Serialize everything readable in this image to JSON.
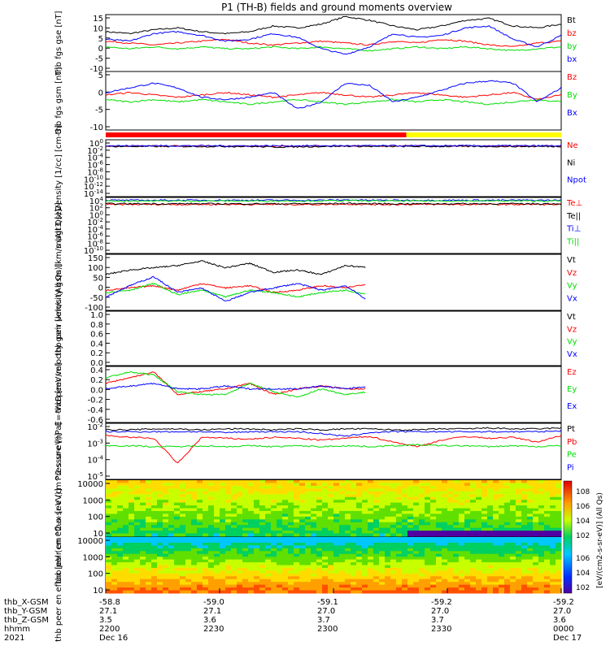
{
  "title": "P1 (TH-B) fields and ground moments overview",
  "colors": {
    "black": "#000000",
    "red": "#ff0000",
    "green": "#00dd00",
    "blue": "#0000ff",
    "yellow": "#ffff00"
  },
  "status_bar": {
    "segments": [
      {
        "from": 0,
        "to": 0.66,
        "color": "#ff0000"
      },
      {
        "from": 0.66,
        "to": 1,
        "color": "#ffff00"
      }
    ]
  },
  "colorbar": {
    "top_label": "[eV/(cm2-s-sr-eV)] (All Qs)",
    "ticks_top": [
      "10^8",
      "10^6",
      "10^4",
      "10^2"
    ],
    "ticks_bottom": [
      "10^6",
      "10^4",
      "10^2"
    ]
  },
  "x_footer": {
    "rows": [
      {
        "label": "thb_X-GSM",
        "values": [
          "-58.8",
          "-59.0",
          "-59.1",
          "-59.2",
          "-59.2"
        ]
      },
      {
        "label": "thb_Y-GSM",
        "values": [
          "27.1",
          "27.1",
          "27.0",
          "27.0",
          "27.0"
        ]
      },
      {
        "label": "thb_Z-GSM",
        "values": [
          "3.5",
          "3.6",
          "3.7",
          "3.7",
          "3.6"
        ]
      },
      {
        "label": "hhmm",
        "values": [
          "2200",
          "2230",
          "2300",
          "2330",
          "0000"
        ]
      },
      {
        "label": "2021",
        "values": [
          "Dec 16",
          "",
          "",
          "",
          "Dec 17"
        ]
      }
    ]
  },
  "chart_data": [
    {
      "type": "line",
      "ylabel": "thb fgs gse [nT]",
      "ylim": [
        -15,
        15
      ],
      "yticks": [
        "15",
        "10",
        "5",
        "0",
        "-5",
        "-10"
      ],
      "series": [
        {
          "name": "Bt",
          "color": "#000000"
        },
        {
          "name": "bz",
          "color": "#ff0000"
        },
        {
          "name": "by",
          "color": "#00dd00"
        },
        {
          "name": "bx",
          "color": "#0000ff"
        }
      ],
      "profiles": [
        [
          6,
          5,
          7,
          8,
          6,
          5,
          6,
          9,
          8,
          10,
          14,
          12,
          9,
          7,
          9,
          12,
          13,
          9,
          8,
          10
        ],
        [
          1,
          0,
          -1,
          0,
          1,
          2,
          0,
          -1,
          0,
          1,
          0,
          -1,
          1,
          0,
          2,
          1,
          -1,
          -2,
          0,
          1
        ],
        [
          -2,
          -3,
          -2,
          -3,
          -2,
          -3,
          -3,
          -2,
          -3,
          -2,
          -3,
          -4,
          -3,
          -2,
          -3,
          -2,
          -3,
          -4,
          -3,
          -2
        ],
        [
          2,
          1,
          5,
          6,
          4,
          1,
          2,
          5,
          3,
          -3,
          -6,
          -2,
          5,
          3,
          4,
          8,
          9,
          2,
          -2,
          4
        ]
      ]
    },
    {
      "type": "line",
      "ylabel": "thb fgs gsm [nT]",
      "ylim": [
        -15,
        10
      ],
      "yticks": [
        "5",
        "0",
        "-5",
        "-10"
      ],
      "series": [
        {
          "name": "Bz",
          "color": "#ff0000"
        },
        {
          "name": "By",
          "color": "#00dd00"
        },
        {
          "name": "Bx",
          "color": "#0000ff"
        }
      ],
      "profiles": [
        [
          0,
          1,
          0,
          -1,
          0,
          1,
          0,
          -1,
          0,
          1,
          0,
          -1,
          0,
          1,
          0,
          -1,
          0,
          1,
          -2,
          0
        ],
        [
          -2,
          -3,
          -2,
          -3,
          -2,
          -3,
          -4,
          -3,
          -2,
          -3,
          -4,
          -3,
          -2,
          -3,
          -2,
          -3,
          -4,
          -3,
          -2,
          -3
        ],
        [
          1,
          3,
          5,
          3,
          -1,
          -2,
          -1,
          1,
          -6,
          -3,
          5,
          4,
          -3,
          -1,
          2,
          5,
          6,
          5,
          -3,
          3
        ]
      ]
    },
    {
      "type": "line",
      "ylabel": "Density [1/cc] [cm-3]",
      "ylim": [
        -15,
        2
      ],
      "log": true,
      "yticks": [
        "10^0",
        "10^-2",
        "10^-4",
        "10^-6",
        "10^-8",
        "10^-10",
        "10^-12",
        "10^-14"
      ],
      "series": [
        {
          "name": "Ne",
          "color": "#ff0000"
        },
        {
          "name": "Ni",
          "color": "#000000"
        },
        {
          "name": "Npot",
          "color": "#0000ff"
        }
      ],
      "profiles": [
        [
          0.1,
          0.1,
          0.1,
          0.1,
          0.1,
          0.1,
          0.1,
          0.0,
          0.1,
          0.1,
          0.2,
          0.1,
          0.1,
          0.1,
          0.1,
          0.1,
          0.1,
          0.1,
          0.1,
          0.1
        ],
        [
          0,
          0,
          0,
          0,
          0,
          0,
          0,
          -0.2,
          -0.1,
          0,
          0.1,
          0,
          0,
          0,
          0,
          0,
          0,
          0,
          0,
          0
        ],
        [
          0.2,
          0.2,
          0.2,
          0.2,
          0.2,
          0.2,
          0.2,
          0.2,
          0.2,
          0.2,
          0.2,
          0.2,
          0.2,
          0.2,
          0.2,
          0.2,
          0.2,
          0.2,
          0.2,
          0.2
        ]
      ]
    },
    {
      "type": "line",
      "ylabel": "magt3 [eV]",
      "ylim": [
        -12,
        4
      ],
      "log": true,
      "yticks": [
        "10^4",
        "10^2",
        "10^0",
        "10^-2",
        "10^-4",
        "10^-6",
        "10^-8",
        "10^-10"
      ],
      "series": [
        {
          "name": "Te⊥",
          "color": "#ff0000"
        },
        {
          "name": "Te||",
          "color": "#000000"
        },
        {
          "name": "Ti⊥",
          "color": "#0000ff"
        },
        {
          "name": "Ti||",
          "color": "#00dd00"
        }
      ],
      "profiles": [
        [
          2.0,
          2.0,
          2.0,
          2.0,
          2.0,
          2.0,
          2.0,
          2.0,
          2.0,
          2.0,
          2.1,
          2.0,
          2.0,
          2.0,
          2.0,
          2.0,
          2.0,
          2.0,
          2.0,
          2.0
        ],
        [
          2.2,
          2.2,
          2.2,
          2.2,
          2.2,
          2.2,
          2.2,
          2.2,
          2.2,
          2.2,
          2.3,
          2.2,
          2.2,
          2.2,
          2.2,
          2.2,
          2.2,
          2.2,
          2.2,
          2.2
        ],
        [
          3.2,
          3.2,
          3.2,
          3.2,
          3.2,
          3.2,
          3.2,
          3.2,
          3.2,
          3.2,
          3.3,
          3.2,
          3.2,
          3.2,
          3.2,
          3.2,
          3.2,
          3.2,
          3.2,
          3.2
        ],
        [
          3.0,
          3.0,
          3.0,
          3.0,
          3.0,
          3.0,
          3.0,
          3.0,
          3.0,
          3.0,
          3.1,
          3.0,
          3.0,
          3.0,
          3.0,
          3.0,
          3.0,
          3.0,
          3.0,
          3.0
        ]
      ]
    },
    {
      "type": "line",
      "ylabel": "thb peir velocity gsm [km/s (All Qs)]",
      "ylim": [
        -100,
        150
      ],
      "yticks": [
        "150",
        "100",
        "50",
        "0",
        "-50",
        "-100"
      ],
      "series": [
        {
          "name": "Vt",
          "color": "#000000"
        },
        {
          "name": "Vz",
          "color": "#ff0000"
        },
        {
          "name": "Vy",
          "color": "#00dd00"
        },
        {
          "name": "Vx",
          "color": "#0000ff"
        }
      ],
      "profiles": [
        [
          60,
          80,
          90,
          100,
          120,
          90,
          110,
          70,
          80,
          60,
          100,
          90,
          70,
          60,
          40,
          null,
          null,
          null,
          null,
          null
        ],
        [
          -10,
          0,
          10,
          -10,
          20,
          0,
          10,
          -20,
          -10,
          10,
          0,
          20,
          -10,
          10,
          20,
          null,
          null,
          null,
          null,
          null
        ],
        [
          -20,
          -10,
          20,
          -30,
          -10,
          -40,
          -10,
          -20,
          -40,
          -20,
          -10,
          -30,
          -40,
          -20,
          0,
          null,
          null,
          null,
          null,
          null
        ],
        [
          -40,
          10,
          50,
          -20,
          0,
          -60,
          -20,
          0,
          20,
          -10,
          10,
          -60,
          -80,
          -40,
          -30,
          null,
          null,
          null,
          null,
          null
        ]
      ],
      "x_end": 0.57
    },
    {
      "type": "line",
      "ylabel": "thb peer velocity gsm [km/s (All Qs)]",
      "ylim": [
        0,
        1
      ],
      "yticks": [
        "1.0",
        "0.8",
        "0.6",
        "0.4",
        "0.2",
        "0.0"
      ],
      "series": [
        {
          "name": "Vt",
          "color": "#000000"
        },
        {
          "name": "Vz",
          "color": "#ff0000"
        },
        {
          "name": "Vy",
          "color": "#00dd00"
        },
        {
          "name": "Vx",
          "color": "#0000ff"
        }
      ],
      "profiles": []
    },
    {
      "type": "line",
      "ylabel": "E=-VxB [mV/m]",
      "ylim": [
        -0.6,
        0.4
      ],
      "yticks": [
        "0.4",
        "0.2",
        "0.0",
        "-0.2",
        "-0.4",
        "-0.6"
      ],
      "series": [
        {
          "name": "Ez",
          "color": "#ff0000"
        },
        {
          "name": "Ey",
          "color": "#00dd00"
        },
        {
          "name": "Ex",
          "color": "#0000ff"
        }
      ],
      "profiles": [
        [
          0.1,
          0.2,
          0.3,
          -0.1,
          -0.05,
          0.0,
          0.1,
          -0.1,
          0.0,
          0.05,
          0.0,
          0.0,
          -0.2,
          -0.3,
          0.1,
          null,
          null,
          null,
          null,
          null
        ],
        [
          0.2,
          0.3,
          0.25,
          -0.05,
          -0.1,
          -0.1,
          0.1,
          -0.05,
          -0.15,
          0.0,
          -0.1,
          -0.05,
          -0.3,
          -0.4,
          0.2,
          null,
          null,
          null,
          null,
          null
        ],
        [
          0.0,
          0.05,
          0.1,
          0.0,
          0.0,
          0.05,
          0.0,
          0.0,
          0.0,
          0.05,
          0.0,
          0.05,
          0.0,
          0.0,
          0.1,
          null,
          null,
          null,
          null,
          null
        ]
      ],
      "x_end": 0.57
    },
    {
      "type": "line",
      "ylabel": "Pressure [nPa]",
      "ylim": [
        -6,
        0
      ],
      "log": true,
      "yticks": [
        "10^-2",
        "10^-3",
        "10^-4",
        "10^-5"
      ],
      "series": [
        {
          "name": "Pt",
          "color": "#000000"
        },
        {
          "name": "Pb",
          "color": "#ff0000"
        },
        {
          "name": "Pe",
          "color": "#00dd00"
        },
        {
          "name": "Pi",
          "color": "#0000ff"
        }
      ],
      "profiles": [
        [
          -0.7,
          -0.7,
          -0.6,
          -0.6,
          -0.7,
          -0.6,
          -0.6,
          -0.7,
          -0.6,
          -0.7,
          -0.6,
          -0.6,
          -0.7,
          -0.7,
          -0.6,
          -0.6,
          -0.5,
          -0.6,
          -0.6,
          -0.5
        ],
        [
          -1.3,
          -1.5,
          -1.6,
          -4.3,
          -1.5,
          -1.6,
          -1.7,
          -1.5,
          -1.6,
          -1.8,
          -1.6,
          -1.4,
          -2.0,
          -2.5,
          -1.8,
          -1.4,
          -1.6,
          -1.5,
          -2.0,
          -1.3
        ],
        [
          -2.4,
          -2.4,
          -2.5,
          -2.5,
          -2.4,
          -2.5,
          -2.4,
          -2.5,
          -2.4,
          -2.5,
          -2.4,
          -2.5,
          -2.4,
          -2.3,
          -2.4,
          -2.4,
          -2.5,
          -2.4,
          -2.5,
          -2.4
        ],
        [
          -0.9,
          -0.9,
          -0.9,
          -0.9,
          -0.9,
          -1.0,
          -0.9,
          -0.9,
          -0.9,
          -1.1,
          -1.4,
          -1.0,
          -0.9,
          -0.9,
          -0.9,
          -0.9,
          -0.9,
          -0.9,
          -0.9,
          -0.8
        ]
      ]
    },
    {
      "type": "heatmap",
      "ylabel": "thb peir en eflux [eV (cm^2-s-sr-eV)]",
      "ylim": [
        10,
        20000
      ],
      "yticks": [
        "10000",
        "1000",
        "100",
        "10"
      ]
    },
    {
      "type": "heatmap",
      "ylabel": "thb peer en eflux [eV (cm^2-s-sr-eV)]",
      "ylim": [
        10,
        20000
      ],
      "yticks": [
        "10000",
        "1000",
        "100",
        "10"
      ]
    }
  ]
}
